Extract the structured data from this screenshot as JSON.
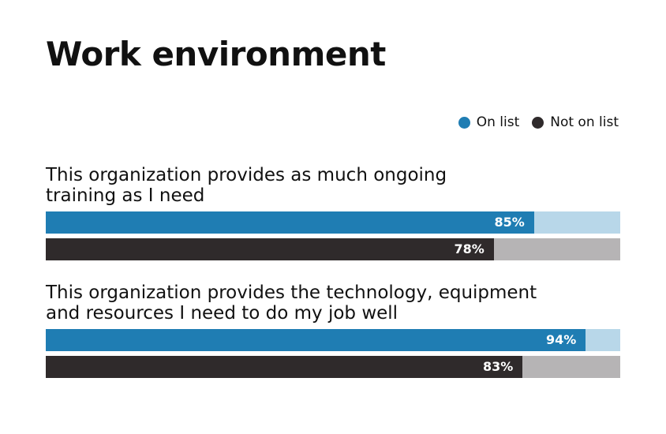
{
  "chart_data": {
    "type": "bar",
    "orientation": "horizontal",
    "title": "Work environment",
    "xlim": [
      0,
      100
    ],
    "grid": false,
    "legend_position": "top-right",
    "categories": [
      "This organization provides as much ongoing training as I need",
      "This organization provides the technology, equipment and resources I need to do my job well"
    ],
    "category_lines": [
      [
        "This organization provides as much ongoing",
        "training as I need"
      ],
      [
        "This organization provides the technology, equipment",
        "and resources I need to do my job well"
      ]
    ],
    "series": [
      {
        "name": "On list",
        "values": [
          85,
          94
        ],
        "labels": [
          "85%",
          "94%"
        ],
        "color": "#1f7db3",
        "track_color": "#b8d7e9"
      },
      {
        "name": "Not on list",
        "values": [
          78,
          83
        ],
        "labels": [
          "78%",
          "83%"
        ],
        "color": "#2f2a2b",
        "track_color": "#b6b4b5"
      }
    ]
  }
}
